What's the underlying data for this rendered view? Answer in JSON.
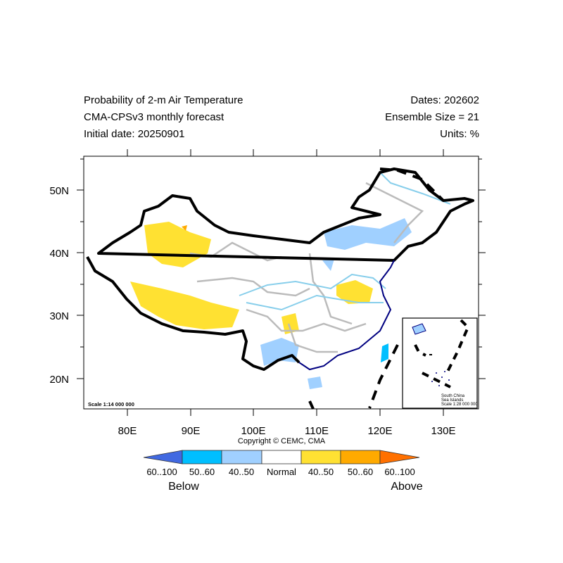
{
  "header": {
    "left": [
      "Probability of 2-m Air Temperature",
      "CMA-CPSv3 monthly forecast",
      "Initial date: 20250901"
    ],
    "right": [
      "Dates: 202602",
      "Ensemble Size = 21",
      "Units: %"
    ]
  },
  "map": {
    "lon_labels": [
      "80E",
      "90E",
      "100E",
      "110E",
      "120E",
      "130E"
    ],
    "lat_labels": [
      "50N",
      "40N",
      "30N",
      "20N"
    ],
    "scale": "Scale 1:14 000 000",
    "inset": {
      "line1": "South China",
      "line2": "Sea Islands",
      "scale": "Scale 1:28 000 000"
    },
    "copyright": "Copyright © CEMC, CMA"
  },
  "legend": {
    "bins": [
      {
        "label": "60..100",
        "color": "#4169e1"
      },
      {
        "label": "50..60",
        "color": "#00bfff"
      },
      {
        "label": "40..50",
        "color": "#a0d0ff"
      },
      {
        "label": "Normal",
        "color": "#ffffff"
      },
      {
        "label": "40..50",
        "color": "#ffe132"
      },
      {
        "label": "50..60",
        "color": "#ffaa00"
      },
      {
        "label": "60..100",
        "color": "#ff7000"
      }
    ],
    "below": "Below",
    "above": "Above"
  }
}
